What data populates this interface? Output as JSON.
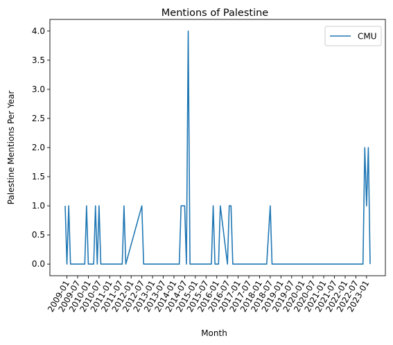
{
  "chart_data": {
    "type": "line",
    "title": "Mentions of Palestine",
    "xlabel": "Month",
    "ylabel": "Palestine Mentions Per Year",
    "ylim": [
      -0.2,
      4.2
    ],
    "grid": false,
    "legend_position": "top-right",
    "x_ticks": [
      "2009-01",
      "2009-07",
      "2010-01",
      "2010-07",
      "2011-01",
      "2011-07",
      "2012-01",
      "2012-07",
      "2013-01",
      "2013-07",
      "2014-01",
      "2014-07",
      "2015-01",
      "2015-07",
      "2016-01",
      "2016-07",
      "2017-01",
      "2017-07",
      "2018-01",
      "2018-07",
      "2019-01",
      "2019-07",
      "2020-01",
      "2020-07",
      "2021-01",
      "2021-07",
      "2022-01",
      "2022-07",
      "2023-01"
    ],
    "y_ticks": [
      "0.0",
      "0.5",
      "1.0",
      "1.5",
      "2.0",
      "2.5",
      "3.0",
      "3.5",
      "4.0"
    ],
    "series": [
      {
        "name": "CMU",
        "color": "#1f77b4",
        "x": [
          "2008-12",
          "2009-01",
          "2009-02",
          "2009-03",
          "2009-11",
          "2009-12",
          "2010-01",
          "2010-04",
          "2010-05",
          "2010-06",
          "2010-07",
          "2010-08",
          "2011-08",
          "2011-09",
          "2011-10",
          "2012-07",
          "2012-08",
          "2014-04",
          "2014-05",
          "2014-06",
          "2014-07",
          "2014-08",
          "2014-09",
          "2014-10",
          "2015-10",
          "2015-11",
          "2015-12",
          "2016-02",
          "2016-03",
          "2016-07",
          "2016-08",
          "2016-09",
          "2016-10",
          "2018-05",
          "2018-07",
          "2018-08",
          "2022-11",
          "2022-12",
          "2023-01",
          "2023-02",
          "2023-03"
        ],
        "y": [
          1,
          0,
          1,
          0,
          0,
          1,
          0,
          0,
          1,
          0,
          1,
          0,
          0,
          1,
          0,
          1,
          0,
          0,
          1,
          1,
          1,
          0,
          4,
          0,
          0,
          1,
          0,
          0,
          1,
          0,
          1,
          1,
          0,
          0,
          1,
          0,
          0,
          2,
          1,
          2,
          0
        ]
      }
    ]
  }
}
